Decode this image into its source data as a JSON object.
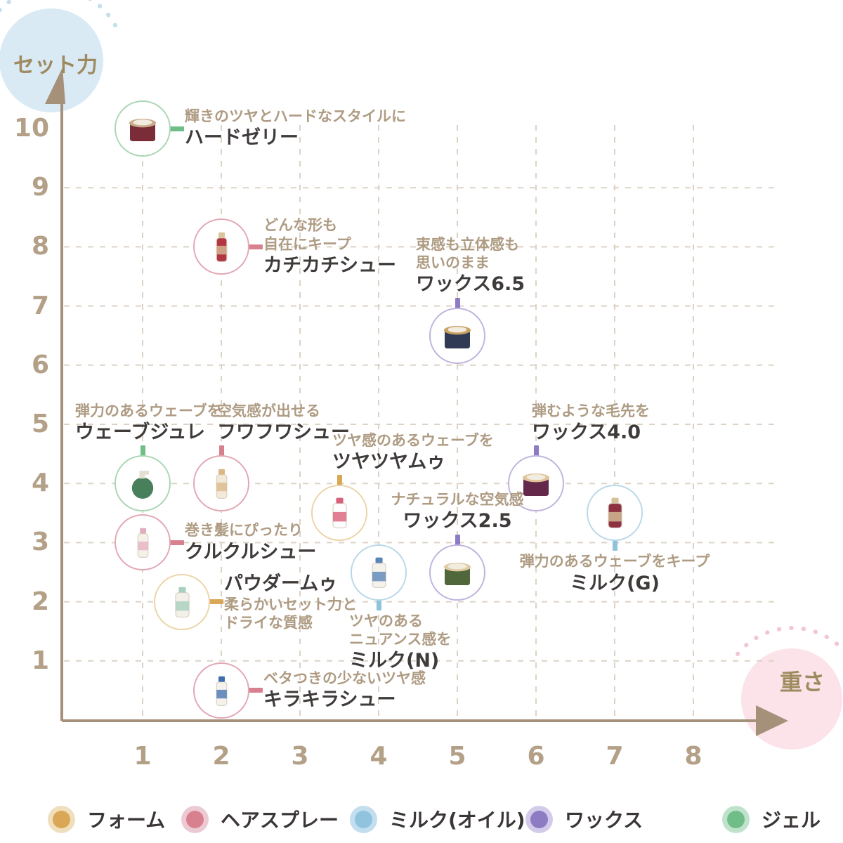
{
  "chart_data": {
    "type": "scatter",
    "xlabel": "重さ",
    "ylabel": "セット力",
    "xlim": [
      0,
      8.8
    ],
    "ylim": [
      0,
      10.8
    ],
    "x_ticks": [
      1,
      2,
      3,
      4,
      5,
      6,
      7,
      8
    ],
    "y_ticks": [
      10,
      9,
      8,
      7,
      6,
      5,
      4,
      3,
      2,
      1
    ],
    "grid": "dashed",
    "legend_position": "bottom",
    "colors": {
      "axis": "#A5907A",
      "tick": "#B3A087",
      "grid": "#DCD3C6",
      "desc_text": "#AE9B82",
      "name_text": "#3F3B3A",
      "y_bubble_fill": "#D9EAF5",
      "y_bubble_dots": "#C3DEEF",
      "x_bubble_fill": "#FBE3E9",
      "x_bubble_dots": "#F3C6D2",
      "bubble_text": "#9F8A5F"
    },
    "categories": [
      {
        "id": "foam",
        "label": "フォーム",
        "color": "#D9A755",
        "light": "#EBD4A8",
        "halo": "#EFDFBC"
      },
      {
        "id": "spray",
        "label": "ヘアスプレー",
        "color": "#D9808F",
        "light": "#E2A7B4",
        "halo": "#ECCAD3"
      },
      {
        "id": "milk",
        "label": "ミルク(オイル)",
        "color": "#8FC3DE",
        "light": "#B9D8E8",
        "halo": "#C2DEEF"
      },
      {
        "id": "wax",
        "label": "ワックス",
        "color": "#8D7BC4",
        "light": "#BFB3DE",
        "halo": "#D3CBEA"
      },
      {
        "id": "gel",
        "label": "ジェル",
        "color": "#6FBE88",
        "light": "#AAD6B4",
        "halo": "#C0E2CC"
      }
    ],
    "points": [
      {
        "name": "ハードゼリー",
        "desc_lines": [
          "輝きのツヤとハードなスタイルに"
        ],
        "x": 1,
        "y": 10,
        "category": "gel",
        "label_side": "right",
        "art": {
          "shape": "jar",
          "body": "#7A2D38",
          "accent": "#C8AD8C"
        }
      },
      {
        "name": "カチカチシュー",
        "desc_lines": [
          "どんな形も",
          "自在にキープ"
        ],
        "x": 2,
        "y": 8,
        "category": "spray",
        "label_side": "right",
        "art": {
          "shape": "spray",
          "body": "#B23742",
          "accent": "#D9C49C"
        }
      },
      {
        "name": "ワックス6.5",
        "desc_lines": [
          "束感も立体感も",
          "思いのまま"
        ],
        "x": 5,
        "y": 6.5,
        "category": "wax",
        "label_side": "above",
        "label_dx": -59,
        "art": {
          "shape": "jar",
          "body": "#303A54",
          "accent": "#C8A05F"
        }
      },
      {
        "name": "ウェーブジュレ",
        "desc_lines": [
          "弾力のあるウェーブを"
        ],
        "x": 1,
        "y": 4,
        "category": "gel",
        "label_side": "above",
        "label_dx": -96,
        "art": {
          "shape": "pump",
          "body": "#47805A",
          "accent": "#E4DFD2"
        }
      },
      {
        "name": "フワフワシュー",
        "desc_lines": [
          "空気感が出せる"
        ],
        "x": 2,
        "y": 4,
        "category": "spray",
        "label_side": "above",
        "label_dx": -6,
        "art": {
          "shape": "spray",
          "body": "#F2E9D8",
          "accent": "#D9B886"
        }
      },
      {
        "name": "ツヤツヤムゥ",
        "desc_lines": [
          "ツヤ感のあるウェーブを"
        ],
        "x": 3.5,
        "y": 3.5,
        "category": "foam",
        "label_side": "above",
        "label_dx": -10,
        "art": {
          "shape": "bottle",
          "body": "#FDFDFD",
          "accent": "#D9607A"
        }
      },
      {
        "name": "ワックス4.0",
        "desc_lines": [
          "弾むような毛先を"
        ],
        "x": 6,
        "y": 4,
        "category": "wax",
        "label_side": "above",
        "label_dx": -6,
        "art": {
          "shape": "jar",
          "body": "#63284A",
          "accent": "#E0C39A"
        }
      },
      {
        "name": "ミルク(G)",
        "desc_lines": [
          "弾力のあるウェーブをキープ"
        ],
        "x": 7,
        "y": 3.5,
        "category": "milk",
        "label_side": "below",
        "label_align": "center",
        "art": {
          "shape": "bottle",
          "body": "#8E3140",
          "accent": "#D6C29A"
        }
      },
      {
        "name": "クルクルシュー",
        "desc_lines": [
          "巻き髪にぴったり"
        ],
        "x": 1,
        "y": 3,
        "category": "spray",
        "label_side": "right",
        "art": {
          "shape": "spray",
          "body": "#F6F1E8",
          "accent": "#E3ADC0"
        }
      },
      {
        "name": "ワックス2.5",
        "desc_lines": [
          "ナチュラルな空気感"
        ],
        "x": 5,
        "y": 2.5,
        "category": "wax",
        "label_side": "above",
        "label_align": "center",
        "art": {
          "shape": "jar",
          "body": "#50663B",
          "accent": "#E0CBA2"
        }
      },
      {
        "name": "パウダームゥ",
        "desc_lines": [
          "柔らかいセット力と",
          "ドライな質感"
        ],
        "x": 1.5,
        "y": 2,
        "category": "foam",
        "label_side": "right",
        "name_first": true,
        "art": {
          "shape": "bottle",
          "body": "#F3F0E9",
          "accent": "#A9D0BE"
        }
      },
      {
        "name": "ミルク(N)",
        "desc_lines": [
          "ツヤのある",
          "ニュアンス感を"
        ],
        "x": 4,
        "y": 2.5,
        "category": "milk",
        "label_side": "below",
        "label_dx": -42,
        "art": {
          "shape": "bottle",
          "body": "#F5F2EB",
          "accent": "#5B84B8"
        }
      },
      {
        "name": "キラキラシュー",
        "desc_lines": [
          "ベタつきの少ないツヤ感"
        ],
        "x": 2,
        "y": 0.5,
        "category": "spray",
        "label_side": "right",
        "art": {
          "shape": "spray",
          "body": "#F5F2EB",
          "accent": "#3F6DB0"
        }
      }
    ]
  }
}
